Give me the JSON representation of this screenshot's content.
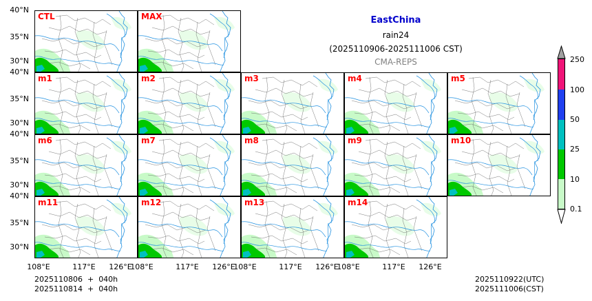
{
  "header": {
    "region": "EastChina",
    "variable": "rain24",
    "period": "(2025110906-2025111006 CST)",
    "model": "CMA-REPS"
  },
  "panels": [
    "CTL",
    "MAX",
    "m1",
    "m2",
    "m3",
    "m4",
    "m5",
    "m6",
    "m7",
    "m8",
    "m9",
    "m10",
    "m11",
    "m12",
    "m13",
    "m14"
  ],
  "lat_labels": [
    "40°N",
    "35°N",
    "30°N"
  ],
  "lon_labels": [
    "108°E",
    "117°E",
    "126°E"
  ],
  "colorbar": {
    "levels": [
      "0.1",
      "10",
      "25",
      "50",
      "100",
      "250"
    ],
    "colors": [
      "#c8fac8",
      "#00c800",
      "#00c0c0",
      "#2040f0",
      "#f01478",
      "#a0a0a0"
    ]
  },
  "footer": {
    "init_utc": "2025110806  +  040h",
    "init_cst": "2025110814  +  040h",
    "valid_utc": "2025110922(UTC)",
    "valid_cst": "2025111006(CST)"
  }
}
